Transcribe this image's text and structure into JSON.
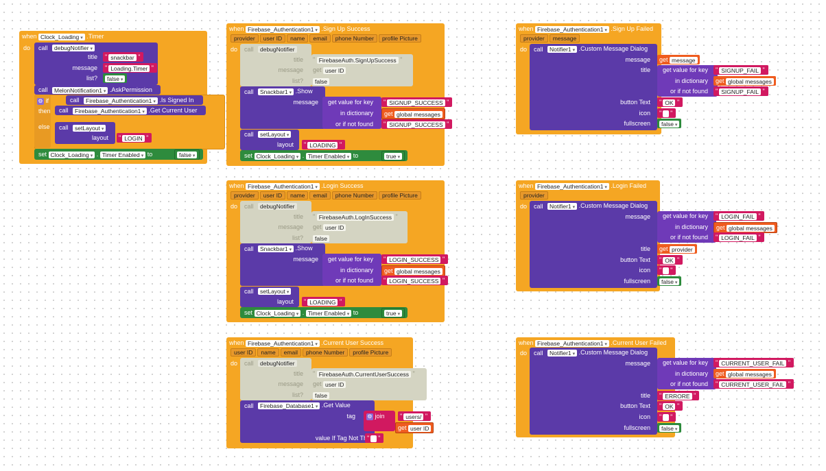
{
  "kw": {
    "when": "when",
    "do": "do",
    "call": "call",
    "set": "set",
    "to": "to",
    "get": "get",
    "if": "if",
    "then": "then",
    "else": "else",
    "join": "join",
    "dot": "."
  },
  "b1": {
    "comp": "Clock_Loading",
    "evt": ".Timer",
    "nc": "debugNotifier",
    "f_title": "title",
    "f_msg": "message",
    "f_list": "list?",
    "v_title": "snackbar",
    "v_msg": "Loading.Timer",
    "v_list": "false",
    "perm_comp": "MelonNotification1",
    "perm_method": ".AskPermission",
    "if_comp": "Firebase_Authentication1",
    "if_prop": ".Is Signed In",
    "then_comp": "Firebase_Authentication1",
    "then_method": ".Get Current User",
    "else_call": "setLayout",
    "f_layout": "layout",
    "v_layout": "LOGIN",
    "set_comp": "Clock_Loading",
    "set_prop": "Timer Enabled",
    "v_set": "false"
  },
  "b2": {
    "comp": "Firebase_Authentication1",
    "evt": ".Sign Up Success",
    "params": [
      "provider",
      "user ID",
      "name",
      "email",
      "phone Number",
      "profile Picture"
    ],
    "nc": "debugNotifier",
    "f_title": "title",
    "f_msg": "message",
    "f_list": "list?",
    "v_title": "FirebaseAuth.SignUpSuccess",
    "v_msg": "user ID",
    "v_list": "false",
    "sb": "Snackbar1",
    "sb_m": ".Show",
    "f_sbmsg": "message",
    "gk": "get value for key",
    "gd": "in dictionary",
    "gn": "or if not found",
    "v_key": "SIGNUP_SUCCESS",
    "v_dict": "global messages",
    "v_nf": "SIGNUP_SUCCESS",
    "sl": "setLayout",
    "f_layout": "layout",
    "v_layout": "LOADING",
    "set_comp": "Clock_Loading",
    "set_prop": "Timer Enabled",
    "v_set": "true"
  },
  "b3": {
    "comp": "Firebase_Authentication1",
    "evt": ".Sign Up Failed",
    "params": [
      "provider",
      "message"
    ],
    "nc": "Notifier1",
    "nm": ".Custom Message Dialog",
    "f_msg": "message",
    "f_title": "title",
    "f_btn": "button Text",
    "f_icon": "icon",
    "f_fs": "fullscreen",
    "v_msg": "message",
    "gk": "get value for key",
    "gd": "in dictionary",
    "gn": "or if not found",
    "v_key": "SIGNUP_FAIL",
    "v_dict": "global messages",
    "v_nf": "SIGNUP_FAIL",
    "v_btn": "OK",
    "v_fs": "false"
  },
  "b4": {
    "comp": "Firebase_Authentication1",
    "evt": ".Login Success",
    "params": [
      "provider",
      "user ID",
      "name",
      "email",
      "phone Number",
      "profile Picture"
    ],
    "nc": "debugNotifier",
    "f_title": "title",
    "f_msg": "message",
    "f_list": "list?",
    "v_title": "FirebaseAuth.LogInSuccess",
    "v_msg": "user ID",
    "v_list": "false",
    "sb": "Snackbar1",
    "sb_m": ".Show",
    "f_sbmsg": "message",
    "gk": "get value for key",
    "gd": "in dictionary",
    "gn": "or if not found",
    "v_key": "LOGIN_SUCCESS",
    "v_dict": "global messages",
    "v_nf": "LOGIN_SUCCESS",
    "sl": "setLayout",
    "f_layout": "layout",
    "v_layout": "LOADING",
    "set_comp": "Clock_Loading",
    "set_prop": "Timer Enabled",
    "v_set": "true"
  },
  "b5": {
    "comp": "Firebase_Authentication1",
    "evt": ".Login Failed",
    "params": [
      "provider"
    ],
    "nc": "Notifier1",
    "nm": ".Custom Message Dialog",
    "f_msg": "message",
    "f_title": "title",
    "f_btn": "button Text",
    "f_icon": "icon",
    "f_fs": "fullscreen",
    "gk": "get value for key",
    "gd": "in dictionary",
    "gn": "or if not found",
    "v_key": "LOGIN_FAIL",
    "v_dict": "global messages",
    "v_nf": "LOGIN_FAIL",
    "v_title": "provider",
    "v_btn": "OK",
    "v_fs": "false"
  },
  "b6": {
    "comp": "Firebase_Authentication1",
    "evt": ".Current User Success",
    "params": [
      "user ID",
      "name",
      "email",
      "phone Number",
      "profile Picture"
    ],
    "nc": "debugNotifier",
    "f_title": "title",
    "f_msg": "message",
    "f_list": "list?",
    "v_title": "FirebaseAuth.CurrentUserSuccess",
    "v_msg": "user ID",
    "v_list": "false",
    "db": "Firebase_Database1",
    "db_m": ".Get Value",
    "f_tag": "tag",
    "v_join1": "users/",
    "v_join2": "user ID",
    "f_vnt": "value If Tag Not There"
  },
  "b7": {
    "comp": "Firebase_Authentication1",
    "evt": ".Current User Failed",
    "nc": "Notifier1",
    "nm": ".Custom Message Dialog",
    "f_msg": "message",
    "f_title": "title",
    "f_btn": "button Text",
    "f_icon": "icon",
    "f_fs": "fullscreen",
    "gk": "get value for key",
    "gd": "in dictionary",
    "gn": "or if not found",
    "v_key": "CURRENT_USER_FAIL",
    "v_dict": "global messages",
    "v_nf": "CURRENT_USER_FAIL",
    "v_title": "ERRORE",
    "v_btn": "OK",
    "v_fs": "false"
  }
}
